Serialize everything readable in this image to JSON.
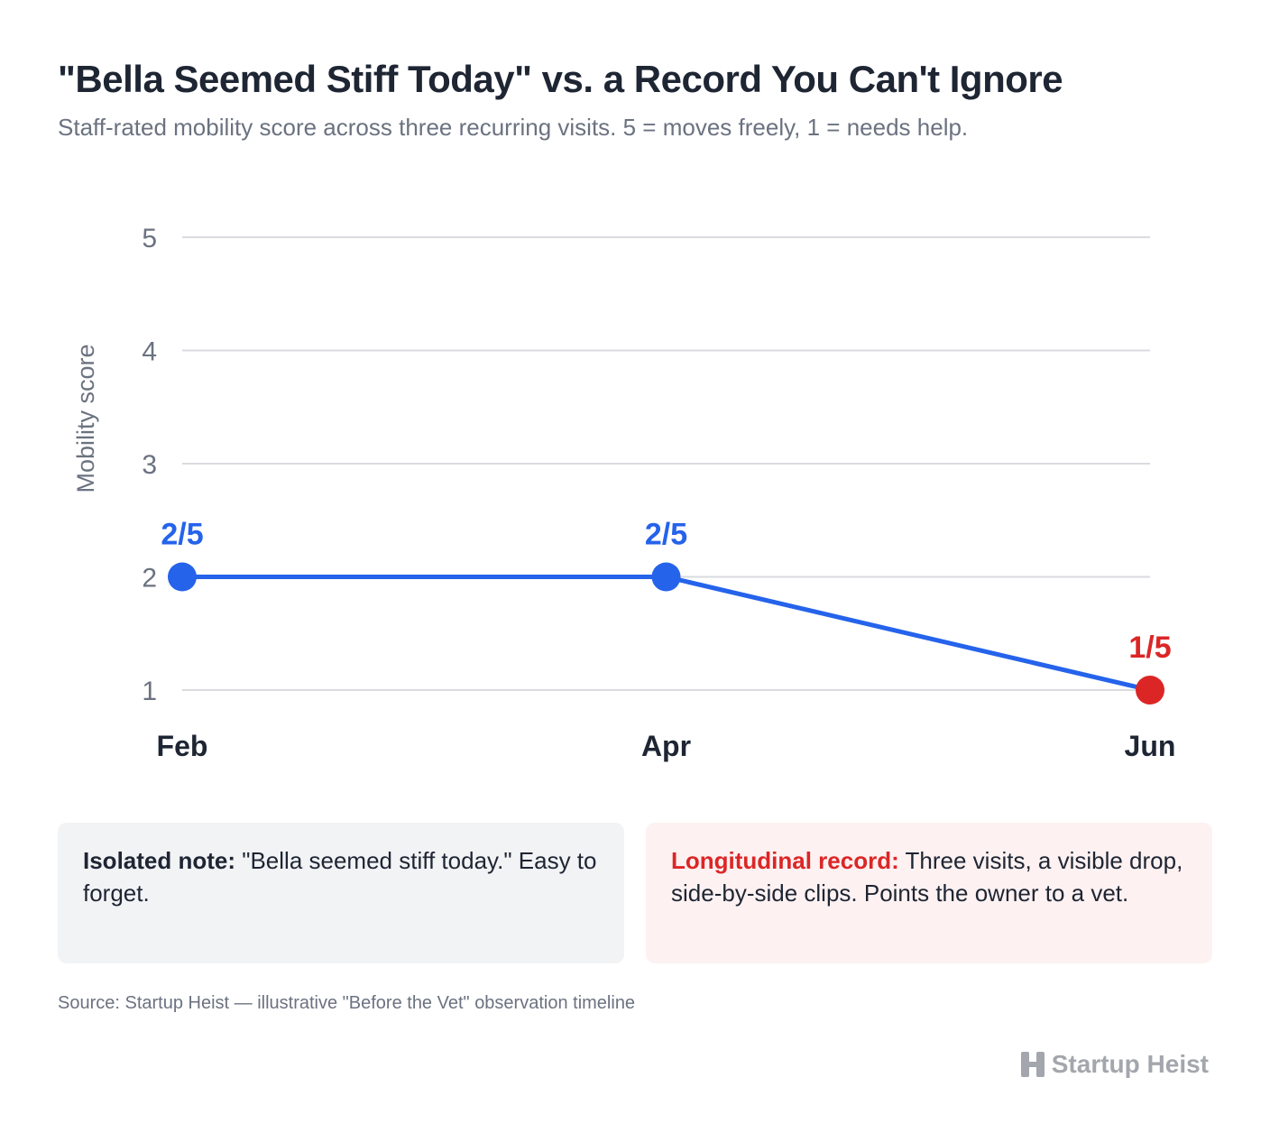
{
  "title": "\"Bella Seemed Stiff Today\" vs. a Record You Can't Ignore",
  "subtitle": "Staff-rated mobility score across three recurring visits. 5 = moves freely, 1 = needs help.",
  "colors": {
    "line": "#2563eb",
    "highlight": "#dc2626",
    "grid": "#d9dbe0"
  },
  "chart_data": {
    "type": "line",
    "categories": [
      "Feb",
      "Apr",
      "Jun"
    ],
    "series": [
      {
        "values": [
          2,
          2,
          1
        ],
        "data_labels": [
          "2/5",
          "2/5",
          "1/5"
        ],
        "point_colors": [
          "#2563eb",
          "#2563eb",
          "#dc2626"
        ]
      }
    ],
    "ylabel": "Mobility score",
    "xlabel": "",
    "ylim": [
      1,
      5
    ],
    "yticks": [
      "1",
      "2",
      "3",
      "4",
      "5"
    ],
    "grid": true,
    "legend": "none"
  },
  "cards": {
    "isolated": {
      "lead": "Isolated note:",
      "text": " \"Bella seemed stiff today.\" Easy to forget."
    },
    "longitudinal": {
      "lead": "Longitudinal record:",
      "text": " Three visits, a visible drop, side-by-side clips. Points the owner to a vet."
    }
  },
  "source": "Source: Startup Heist — illustrative \"Before the Vet\" observation timeline",
  "brand": {
    "name": "Startup Heist",
    "icon": "startup-heist-logo-icon"
  }
}
